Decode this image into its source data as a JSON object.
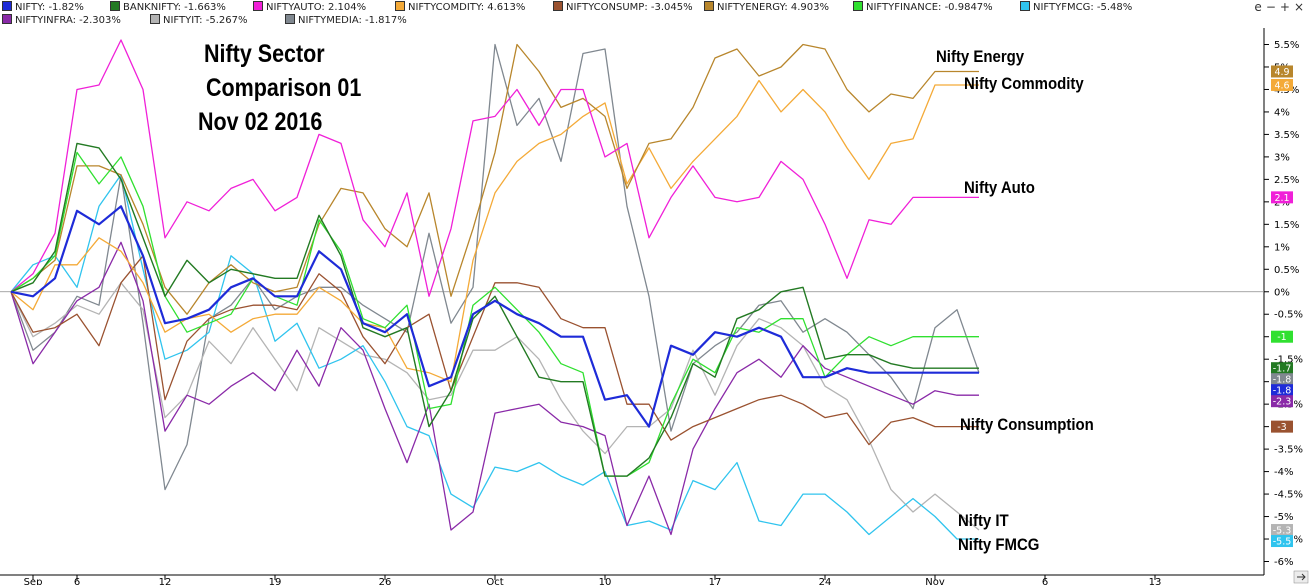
{
  "window_controls": {
    "expand": "e",
    "minus": "−",
    "plus": "+",
    "close": "×"
  },
  "legend": [
    {
      "label": "NIFTY: -1.82%",
      "color": "#1e2bd8"
    },
    {
      "label": "BANKNIFTY: -1.663%",
      "color": "#237a23"
    },
    {
      "label": "NIFTYAUTO: 2.104%",
      "color": "#f020d8"
    },
    {
      "label": "NIFTYCOMDITY: 4.613%",
      "color": "#f4aa38"
    },
    {
      "label": "NIFTYCONSUMP: -3.045%",
      "color": "#9a5230"
    },
    {
      "label": "NIFTYENERGY: 4.903%",
      "color": "#b8862c"
    },
    {
      "label": "NIFTYFINANCE: -0.9847%",
      "color": "#30e030"
    },
    {
      "label": "NIFTYFMCG: -5.48%",
      "color": "#30c4ee"
    },
    {
      "label": "NIFTYINFRA: -2.303%",
      "color": "#8a2aa8"
    },
    {
      "label": "NIFTYIT: -5.267%",
      "color": "#b4b4b4"
    },
    {
      "label": "NIFTYMEDIA: -1.817%",
      "color": "#808890"
    }
  ],
  "title_lines": [
    "Nifty Sector",
    "Comparison 01",
    "Nov 02 2016"
  ],
  "annotations": [
    {
      "text": "Nifty Energy",
      "series": "NIFTYENERGY"
    },
    {
      "text": "Nifty Commodity",
      "series": "NIFTYCOMDITY"
    },
    {
      "text": "Nifty Auto",
      "series": "NIFTYAUTO"
    },
    {
      "text": "Nifty Consumption",
      "series": "NIFTYCONSUMP"
    },
    {
      "text": "Nifty IT",
      "series": "NIFTYIT"
    },
    {
      "text": "Nifty FMCG",
      "series": "NIFTYFMCG"
    }
  ],
  "chart_data": {
    "type": "line",
    "x_index_range": [
      0,
      51
    ],
    "x_ticks": [
      {
        "label": "Sep",
        "x": 1
      },
      {
        "label": "6",
        "x": 3
      },
      {
        "label": "12",
        "x": 7
      },
      {
        "label": "19",
        "x": 12
      },
      {
        "label": "26",
        "x": 17
      },
      {
        "label": "Oct",
        "x": 22
      },
      {
        "label": "10",
        "x": 27
      },
      {
        "label": "17",
        "x": 32
      },
      {
        "label": "24",
        "x": 37
      },
      {
        "label": "Nov",
        "x": 42
      },
      {
        "label": "6",
        "x": 47
      },
      {
        "label": "13",
        "x": 52
      }
    ],
    "ylim": [
      -6.2,
      5.8
    ],
    "y_ticks": [
      5.5,
      5,
      4.5,
      4,
      3.5,
      3,
      2.5,
      2,
      1.5,
      1,
      0.5,
      0,
      -0.5,
      -1,
      -1.5,
      -2,
      -2.5,
      -3,
      -3.5,
      -4,
      -4.5,
      -5,
      -5.5,
      -6
    ],
    "y_tick_labels": [
      "5.5%",
      "5%",
      "4.5%",
      "4%",
      "3.5%",
      "3%",
      "2.5%",
      "2%",
      "1.5%",
      "1%",
      "0.5%",
      "0%",
      "-0.5%",
      "-1%",
      "-1.5%",
      "-2%",
      "-2.5%",
      "-3%",
      "-3.5%",
      "-4%",
      "-4.5%",
      "-5%",
      "-5.5%",
      "-6%"
    ],
    "zero_line": 0,
    "grid": false,
    "series": [
      {
        "name": "NIFTYMEDIA",
        "color": "#808890",
        "badge": "-1.8",
        "width": 1.3,
        "values": [
          0,
          -1.3,
          -0.9,
          -0.1,
          -0.3,
          2.6,
          -0.7,
          -4.4,
          -3.4,
          -0.6,
          -0.3,
          0.3,
          -0.4,
          -0.1,
          0.1,
          0.1,
          -0.3,
          -0.6,
          -0.9,
          1.3,
          -0.7,
          0.1,
          5.5,
          3.7,
          4.3,
          2.9,
          5.3,
          5.4,
          1.9,
          -0.1,
          -3.1,
          -1.6,
          -1.2,
          -0.9,
          -0.3,
          -0.2,
          -0.9,
          -0.6,
          -0.9,
          -1.4,
          -1.9,
          -2.6,
          -0.8,
          -0.4,
          -1.8
        ]
      },
      {
        "name": "NIFTYIT",
        "color": "#b4b4b4",
        "badge": "-5.3",
        "width": 1.3,
        "values": [
          0,
          -1.0,
          -0.7,
          -0.3,
          -0.5,
          0.2,
          -0.4,
          -2.8,
          -2.3,
          -1.1,
          -1.6,
          -0.8,
          -1.5,
          -2.2,
          -0.8,
          -1.1,
          -1.4,
          -1.5,
          -1.8,
          -2.4,
          -2.3,
          -1.3,
          -1.3,
          -1.0,
          -1.5,
          -2.4,
          -3.1,
          -3.6,
          -3.0,
          -3.0,
          -2.6,
          -1.3,
          -2.3,
          -1.2,
          -0.6,
          -0.8,
          -1.2,
          -2.1,
          -2.4,
          -3.3,
          -4.4,
          -4.9,
          -4.5,
          -4.9,
          -5.3
        ]
      },
      {
        "name": "NIFTYFMCG",
        "color": "#30c4ee",
        "badge": "-5.5",
        "width": 1.3,
        "values": [
          0,
          0.6,
          0.8,
          0.1,
          1.9,
          2.6,
          0.5,
          -1.5,
          -1.3,
          -0.9,
          0.8,
          0.4,
          -1.1,
          -0.7,
          -1.7,
          -1.5,
          -1.2,
          -2.0,
          -3.0,
          -3.2,
          -4.5,
          -4.8,
          -3.9,
          -4.0,
          -3.8,
          -4.1,
          -4.3,
          -4.0,
          -5.2,
          -5.1,
          -5.3,
          -4.2,
          -4.4,
          -3.8,
          -5.1,
          -5.2,
          -4.5,
          -4.5,
          -4.9,
          -5.4,
          -5.0,
          -4.6,
          -5.0,
          -5.5,
          -5.5
        ]
      },
      {
        "name": "NIFTYINFRA",
        "color": "#8a2aa8",
        "badge": "-2.3",
        "width": 1.3,
        "values": [
          0,
          -1.6,
          -0.9,
          -0.2,
          0.1,
          1.1,
          -0.2,
          -3.1,
          -2.3,
          -2.5,
          -2.1,
          -1.8,
          -2.2,
          -1.3,
          -2.1,
          -0.8,
          -1.3,
          -2.6,
          -3.8,
          -2.5,
          -5.3,
          -4.9,
          -2.7,
          -2.6,
          -2.5,
          -2.9,
          -3.0,
          -3.2,
          -5.2,
          -4.1,
          -5.4,
          -3.5,
          -2.6,
          -1.8,
          -1.5,
          -1.9,
          -1.2,
          -1.7,
          -1.9,
          -2.1,
          -2.3,
          -2.5,
          -2.2,
          -2.3,
          -2.3
        ]
      },
      {
        "name": "NIFTYCONSUMP",
        "color": "#9a5230",
        "badge": "-3",
        "width": 1.3,
        "values": [
          0,
          -0.9,
          -0.8,
          -0.5,
          -1.2,
          0.2,
          0.8,
          -2.4,
          -1.1,
          -0.6,
          -0.4,
          -0.3,
          -0.3,
          -0.4,
          0.4,
          0.0,
          -1.0,
          -1.6,
          -0.8,
          -0.5,
          -2.2,
          -1.0,
          0.2,
          0.2,
          0.1,
          -0.6,
          -0.8,
          -0.8,
          -2.5,
          -2.5,
          -3.3,
          -3.0,
          -2.8,
          -2.6,
          -2.4,
          -2.3,
          -2.5,
          -2.8,
          -2.7,
          -3.4,
          -2.9,
          -2.8,
          -3.0,
          -3.0,
          -3.0
        ]
      },
      {
        "name": "NIFTYCOMDITY",
        "color": "#f4aa38",
        "badge": "4.6",
        "width": 1.3,
        "values": [
          0,
          -0.4,
          0.6,
          0.6,
          1.2,
          0.9,
          0.2,
          -0.9,
          -0.6,
          -0.5,
          -0.9,
          -0.6,
          -0.5,
          -0.5,
          0.1,
          -0.2,
          -0.7,
          -0.8,
          -1.7,
          -1.8,
          -2.0,
          0.7,
          2.2,
          2.9,
          3.3,
          3.5,
          3.9,
          4.2,
          2.4,
          3.2,
          2.3,
          2.9,
          3.4,
          3.9,
          4.7,
          4.0,
          4.5,
          4.0,
          3.2,
          2.5,
          3.3,
          3.4,
          4.6,
          4.6,
          4.6
        ]
      },
      {
        "name": "NIFTYENERGY",
        "color": "#b8862c",
        "badge": "4.9",
        "width": 1.3,
        "values": [
          0,
          0.3,
          0.7,
          2.8,
          2.8,
          2.6,
          1.5,
          0.1,
          -0.5,
          0.2,
          0.6,
          0.2,
          0.0,
          0.1,
          1.5,
          2.3,
          2.2,
          1.4,
          1.0,
          2.2,
          -0.1,
          1.4,
          3.1,
          5.5,
          4.9,
          4.1,
          4.3,
          3.9,
          2.3,
          3.3,
          3.4,
          4.1,
          5.2,
          5.4,
          4.8,
          5.0,
          5.5,
          5.4,
          4.5,
          4.0,
          4.4,
          4.3,
          4.9,
          4.9,
          4.9
        ]
      },
      {
        "name": "NIFTYAUTO",
        "color": "#f020d8",
        "badge": "2.1",
        "width": 1.3,
        "values": [
          0,
          0.4,
          1.3,
          4.5,
          4.6,
          5.6,
          4.5,
          1.2,
          2.0,
          1.8,
          2.3,
          2.5,
          1.8,
          2.1,
          3.5,
          3.3,
          1.6,
          1.0,
          2.2,
          -0.1,
          1.4,
          3.8,
          3.9,
          4.5,
          3.7,
          4.5,
          4.5,
          3.0,
          3.3,
          1.2,
          2.1,
          2.8,
          2.1,
          2.0,
          2.1,
          2.9,
          2.5,
          1.5,
          0.3,
          1.6,
          1.5,
          2.1,
          2.1,
          2.1,
          2.1
        ]
      },
      {
        "name": "NIFTYFINANCE",
        "color": "#30e030",
        "badge": "-1",
        "width": 1.3,
        "values": [
          0,
          0.3,
          0.8,
          3.1,
          2.4,
          3.0,
          1.9,
          -0.1,
          -0.9,
          -0.7,
          -0.5,
          0.3,
          -0.1,
          -0.3,
          1.6,
          0.9,
          -0.6,
          -0.8,
          -0.3,
          -2.6,
          -2.5,
          -0.3,
          0.1,
          -0.4,
          -0.9,
          -1.6,
          -1.8,
          -4.1,
          -4.1,
          -3.8,
          -2.5,
          -1.5,
          -1.8,
          -0.8,
          -0.9,
          -0.6,
          -0.6,
          -1.9,
          -1.4,
          -1.0,
          -1.2,
          -1.0,
          -1.0,
          -1.0,
          -1.0
        ]
      },
      {
        "name": "BANKNIFTY",
        "color": "#237a23",
        "badge": "-1.7",
        "width": 1.4,
        "values": [
          0,
          0.2,
          0.9,
          3.3,
          3.2,
          2.5,
          1.2,
          -0.1,
          0.7,
          0.2,
          0.5,
          0.4,
          0.3,
          0.3,
          1.7,
          0.8,
          -0.8,
          -1.0,
          -0.8,
          -3.0,
          -2.2,
          -0.6,
          -0.1,
          -1.0,
          -1.9,
          -2.0,
          -2.0,
          -4.1,
          -4.1,
          -3.7,
          -2.8,
          -1.6,
          -1.9,
          -0.6,
          -0.4,
          0.0,
          0.1,
          -1.5,
          -1.4,
          -1.4,
          -1.6,
          -1.7,
          -1.7,
          -1.7,
          -1.7
        ]
      },
      {
        "name": "NIFTY",
        "color": "#1e2bd8",
        "badge": "-1.8",
        "width": 2.2,
        "values": [
          0,
          -0.1,
          0.3,
          1.8,
          1.5,
          1.9,
          0.8,
          -0.7,
          -0.6,
          -0.4,
          0.1,
          0.3,
          -0.1,
          -0.1,
          0.9,
          0.5,
          -0.7,
          -0.9,
          -0.5,
          -2.1,
          -1.9,
          -0.5,
          -0.2,
          -0.5,
          -0.7,
          -1.0,
          -1.0,
          -2.4,
          -2.3,
          -3.0,
          -1.2,
          -1.4,
          -0.9,
          -1.0,
          -0.8,
          -1.0,
          -1.9,
          -1.9,
          -1.7,
          -1.8,
          -1.8,
          -1.8,
          -1.8,
          -1.8,
          -1.8
        ]
      }
    ]
  }
}
